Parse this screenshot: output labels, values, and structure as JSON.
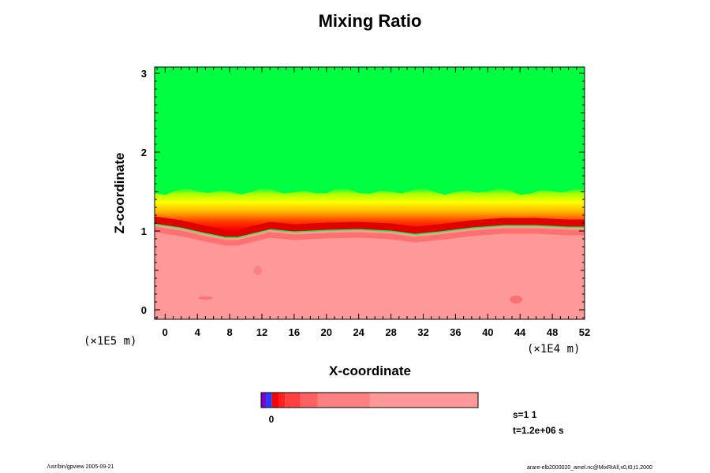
{
  "chart_data": {
    "type": "heatmap",
    "title": "Mixing Ratio",
    "xlabel": "X-coordinate",
    "ylabel": "Z-coordinate",
    "x_unit": "(×1E4 m)",
    "y_unit": "(×1E5 m)",
    "xlim": [
      -1.3,
      52
    ],
    "ylim": [
      -0.12,
      3.08
    ],
    "x_ticks": [
      0,
      4,
      8,
      12,
      16,
      20,
      24,
      28,
      32,
      36,
      40,
      44,
      48,
      52
    ],
    "y_ticks": [
      0,
      1,
      2,
      3
    ],
    "interface_height": [
      [
        -1.3,
        1.1
      ],
      [
        2,
        1.05
      ],
      [
        5,
        0.98
      ],
      [
        7.5,
        0.93
      ],
      [
        9,
        0.93
      ],
      [
        11,
        0.98
      ],
      [
        13,
        1.03
      ],
      [
        16,
        1.0
      ],
      [
        20,
        1.02
      ],
      [
        24,
        1.03
      ],
      [
        28,
        1.01
      ],
      [
        31,
        0.97
      ],
      [
        34,
        1.0
      ],
      [
        38,
        1.05
      ],
      [
        42,
        1.08
      ],
      [
        46,
        1.08
      ],
      [
        50,
        1.06
      ],
      [
        52,
        1.06
      ]
    ],
    "green_base_height": 1.5,
    "colorbar": {
      "tick_labels": [
        "0"
      ],
      "colors": [
        "#7a00d8",
        "#2040ff",
        "#ff0000",
        "#ff2020",
        "#ff4040",
        "#ff6060",
        "#ff8080",
        "#ff9898"
      ]
    },
    "region_colors": {
      "upper": "#00ff40",
      "lower": "#ff9898",
      "transition": [
        "#ffff00",
        "#ffd000",
        "#ff9000",
        "#ff4000",
        "#ff0000"
      ]
    },
    "annotations": {
      "step": "s=1 1",
      "time": "t=1.2e+06 s"
    }
  },
  "footer": {
    "left": "/usr/bin/gpview 2005-09-21",
    "right": "arare-elb2000020_amel.nc@MixRtAll,x0,t0,t1.2000"
  }
}
